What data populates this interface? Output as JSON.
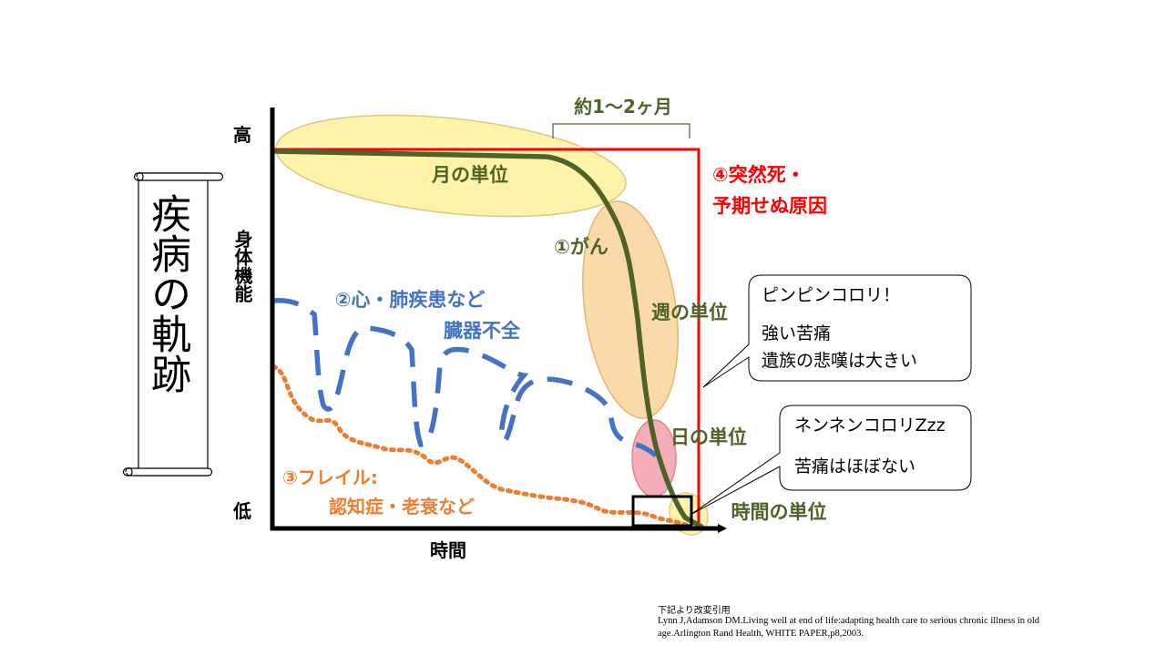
{
  "scroll_title": "疾病の軌跡",
  "axes": {
    "y_label": "身体機能",
    "y_high": "高",
    "y_low": "低",
    "x_label": "時間"
  },
  "bracket_label": "約1〜2ヶ月",
  "annotations": {
    "month_unit": "月の単位",
    "cancer": "①がん",
    "week_unit": "週の単位",
    "day_unit": "日の単位",
    "hour_unit": "時間の単位",
    "organ_failure_line1": "②心・肺疾患など",
    "organ_failure_line2": "臓器不全",
    "frailty_line1": "③フレイル:",
    "frailty_line2": "認知症・老衰など",
    "sudden_line1": "④突然死・",
    "sudden_line2": "予期せぬ原因"
  },
  "callouts": {
    "pinpin": {
      "line1": "ピンピンコロリ！",
      "line2": "強い苦痛",
      "line3": "遺族の悲嘆は大きい"
    },
    "nennen": {
      "line1": "ネンネンコロリZzz",
      "line2": "苦痛はほぼない"
    }
  },
  "reference": {
    "line1": "下記より改変引用",
    "line2": "Lynn J,Adamson DM.Living well at end of life:adapting health care to serious chronic illness in old",
    "line3": "age.Arlington Rand Health, WHITE PAPER,p8,2003."
  },
  "colors": {
    "cancer": "#4f6228",
    "organ_failure": "#4472c4",
    "frailty": "#ed7d31",
    "sudden": "#ff0000",
    "highlight_yellow": "#fff2a0",
    "highlight_orange": "#fad7a0",
    "highlight_pink": "#f4a6b0"
  }
}
